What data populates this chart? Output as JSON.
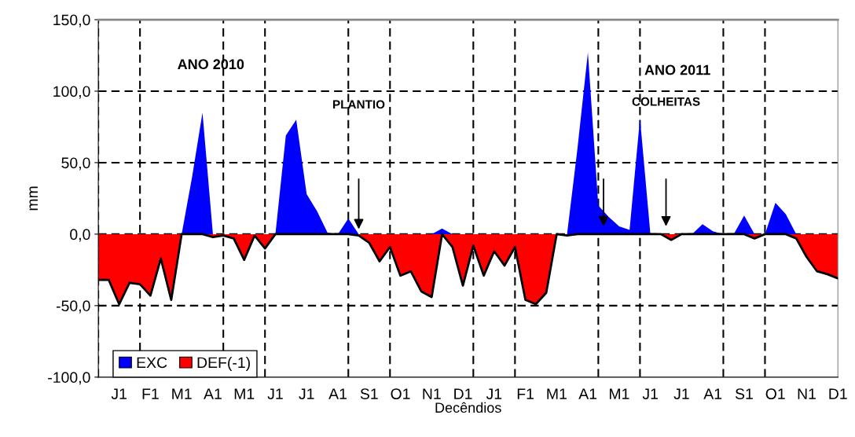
{
  "chart_data": {
    "type": "area",
    "xlabel": "Decêndios",
    "ylabel": "mm",
    "categories": [
      null,
      null,
      "J1",
      null,
      null,
      "F1",
      null,
      null,
      "M1",
      null,
      null,
      "A1",
      null,
      null,
      "M1",
      null,
      null,
      "J1",
      null,
      null,
      "J1",
      null,
      null,
      "A1",
      null,
      null,
      "S1",
      null,
      null,
      "O1",
      null,
      null,
      "N1",
      null,
      null,
      "D1",
      null,
      null,
      "J1",
      null,
      null,
      "F1",
      null,
      null,
      "M1",
      null,
      null,
      "A1",
      null,
      null,
      "M1",
      null,
      null,
      "J1",
      null,
      null,
      "J1",
      null,
      null,
      "A1",
      null,
      null,
      "S1",
      null,
      null,
      "O1",
      null,
      null,
      "N1",
      null,
      null,
      "D1"
    ],
    "series": [
      {
        "name": "EXC",
        "color": "#0000ff",
        "values": [
          0,
          0,
          0,
          0,
          0,
          0,
          0,
          0,
          0,
          40,
          85,
          0,
          0,
          0,
          0,
          0,
          0,
          0,
          69,
          80,
          28,
          16,
          1,
          0,
          11,
          0,
          0,
          0,
          0,
          0,
          0,
          0,
          0,
          4,
          0,
          0,
          0,
          0,
          0,
          0,
          0,
          0,
          0,
          0,
          0,
          0,
          60,
          127,
          20,
          12,
          5.5,
          3,
          81,
          0,
          0,
          0,
          0,
          0,
          7,
          2,
          0,
          0,
          13,
          0,
          0,
          22,
          14,
          0,
          0,
          0,
          0,
          0
        ]
      },
      {
        "name": "DEF(-1)",
        "color": "#ff0000",
        "line_style": "solid",
        "values": [
          -32,
          -32,
          -49,
          -34,
          -35,
          -43,
          -17,
          -46,
          0,
          0,
          0,
          -2,
          -1,
          -3,
          -18,
          -1,
          -10,
          0,
          0,
          0,
          0,
          0,
          0,
          0,
          0,
          -1,
          -6,
          -19,
          -9,
          -29,
          -26,
          -40,
          -44,
          0,
          -9,
          -36,
          -8,
          -29,
          -12,
          -22,
          -9,
          -46,
          -49,
          -41,
          0,
          -1,
          0,
          0,
          0,
          0,
          0,
          0,
          0,
          0,
          0,
          -4,
          0,
          0,
          0,
          0,
          0,
          0,
          0,
          -3,
          0,
          0,
          0,
          -3,
          -16,
          -26,
          -28,
          -31
        ]
      }
    ],
    "ylim": [
      -100,
      150
    ],
    "yticks": [
      {
        "value": -100,
        "label": "-100,0"
      },
      {
        "value": -50,
        "label": "-50,0"
      },
      {
        "value": 0,
        "label": "0,0"
      },
      {
        "value": 50,
        "label": "50,0"
      },
      {
        "value": 100,
        "label": "100,0"
      },
      {
        "value": 150,
        "label": "150,0"
      }
    ],
    "grid": true,
    "legend": "bottom left",
    "annotations": [
      "ANO 2010",
      "PLANTIO",
      "ANO 2011",
      "COLHEITAS"
    ]
  }
}
